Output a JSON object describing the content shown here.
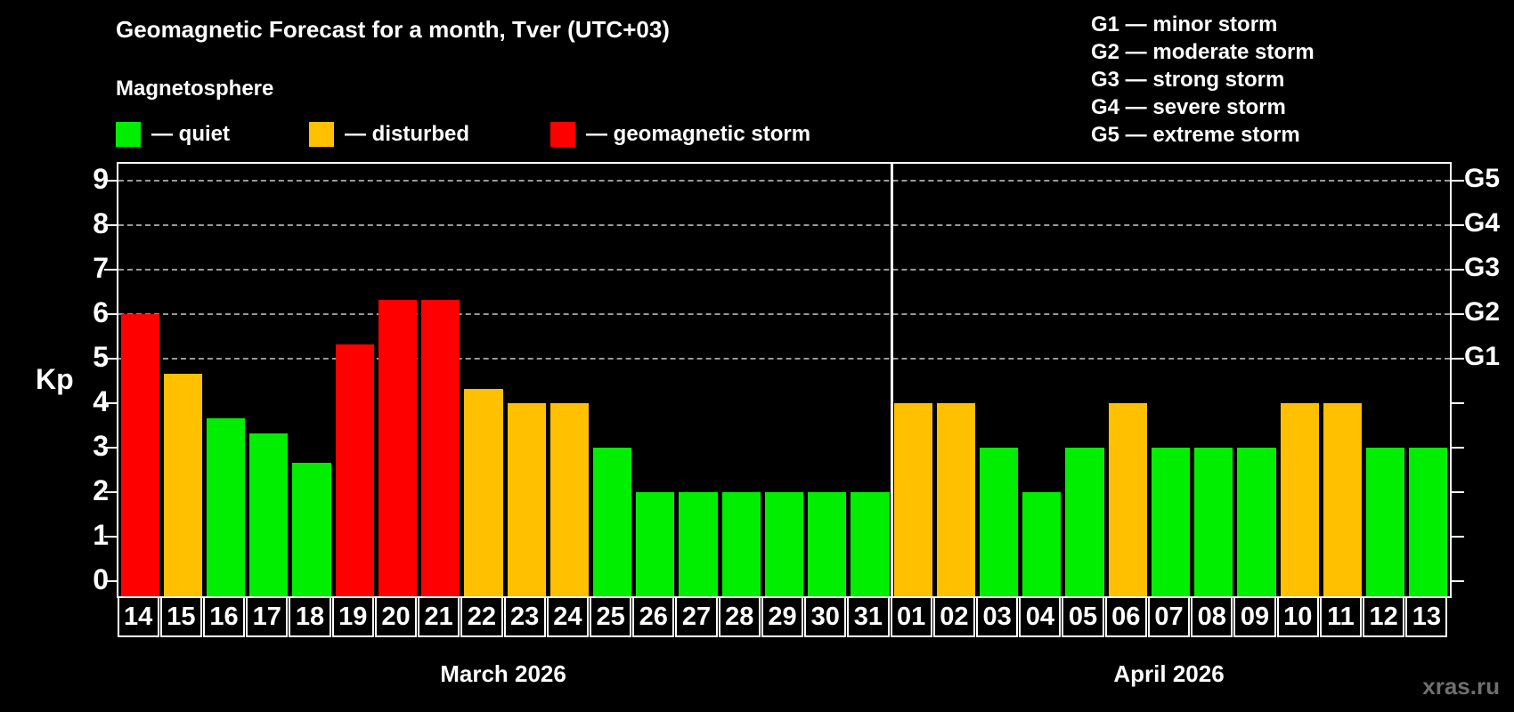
{
  "title": "Geomagnetic Forecast for a month, Tver (UTC+03)",
  "subtitle": "Magnetosphere",
  "legend": {
    "quiet": "— quiet",
    "disturbed": "— disturbed",
    "storm": "— geomagnetic storm"
  },
  "g_legend": [
    "G1 — minor storm",
    "G2 — moderate storm",
    "G3 — strong storm",
    "G4 — severe storm",
    "G5 — extreme storm"
  ],
  "watermark": "xras.ru",
  "colors": {
    "quiet": "#00ee00",
    "disturbed": "#ffc000",
    "storm": "#ff0000",
    "grid": "#b4b4b4",
    "axis": "#ffffff",
    "watermark": "#6f6f6f",
    "background": "#000000"
  },
  "chart_data": {
    "type": "bar",
    "ylabel": "Kp",
    "ylim": [
      0,
      9.3
    ],
    "yticks": [
      "0",
      "1",
      "2",
      "3",
      "4",
      "5",
      "6",
      "7",
      "8",
      "9"
    ],
    "gridlines_at": [
      5,
      6,
      7,
      8,
      9
    ],
    "right_axis_labels": [
      {
        "kp": 5,
        "label": "G1"
      },
      {
        "kp": 6,
        "label": "G2"
      },
      {
        "kp": 7,
        "label": "G3"
      },
      {
        "kp": 8,
        "label": "G4"
      },
      {
        "kp": 9,
        "label": "G5"
      }
    ],
    "legend_position": "top-left",
    "grid": "horizontal dashed at Kp 5–9",
    "months": [
      {
        "label": "March 2026",
        "days": [
          {
            "day": "14",
            "kp": 6.0,
            "state": "storm"
          },
          {
            "day": "15",
            "kp": 4.67,
            "state": "disturbed"
          },
          {
            "day": "16",
            "kp": 3.67,
            "state": "quiet"
          },
          {
            "day": "17",
            "kp": 3.33,
            "state": "quiet"
          },
          {
            "day": "18",
            "kp": 2.67,
            "state": "quiet"
          },
          {
            "day": "19",
            "kp": 5.33,
            "state": "storm"
          },
          {
            "day": "20",
            "kp": 6.33,
            "state": "storm"
          },
          {
            "day": "21",
            "kp": 6.33,
            "state": "storm"
          },
          {
            "day": "22",
            "kp": 4.33,
            "state": "disturbed"
          },
          {
            "day": "23",
            "kp": 4.0,
            "state": "disturbed"
          },
          {
            "day": "24",
            "kp": 4.0,
            "state": "disturbed"
          },
          {
            "day": "25",
            "kp": 3.0,
            "state": "quiet"
          },
          {
            "day": "26",
            "kp": 2.0,
            "state": "quiet"
          },
          {
            "day": "27",
            "kp": 2.0,
            "state": "quiet"
          },
          {
            "day": "28",
            "kp": 2.0,
            "state": "quiet"
          },
          {
            "day": "29",
            "kp": 2.0,
            "state": "quiet"
          },
          {
            "day": "30",
            "kp": 2.0,
            "state": "quiet"
          },
          {
            "day": "31",
            "kp": 2.0,
            "state": "quiet"
          }
        ]
      },
      {
        "label": "April 2026",
        "days": [
          {
            "day": "01",
            "kp": 4.0,
            "state": "disturbed"
          },
          {
            "day": "02",
            "kp": 4.0,
            "state": "disturbed"
          },
          {
            "day": "03",
            "kp": 3.0,
            "state": "quiet"
          },
          {
            "day": "04",
            "kp": 2.0,
            "state": "quiet"
          },
          {
            "day": "05",
            "kp": 3.0,
            "state": "quiet"
          },
          {
            "day": "06",
            "kp": 4.0,
            "state": "disturbed"
          },
          {
            "day": "07",
            "kp": 3.0,
            "state": "quiet"
          },
          {
            "day": "08",
            "kp": 3.0,
            "state": "quiet"
          },
          {
            "day": "09",
            "kp": 3.0,
            "state": "quiet"
          },
          {
            "day": "10",
            "kp": 4.0,
            "state": "disturbed"
          },
          {
            "day": "11",
            "kp": 4.0,
            "state": "disturbed"
          },
          {
            "day": "12",
            "kp": 3.0,
            "state": "quiet"
          },
          {
            "day": "13",
            "kp": 3.0,
            "state": "quiet"
          }
        ]
      }
    ]
  }
}
